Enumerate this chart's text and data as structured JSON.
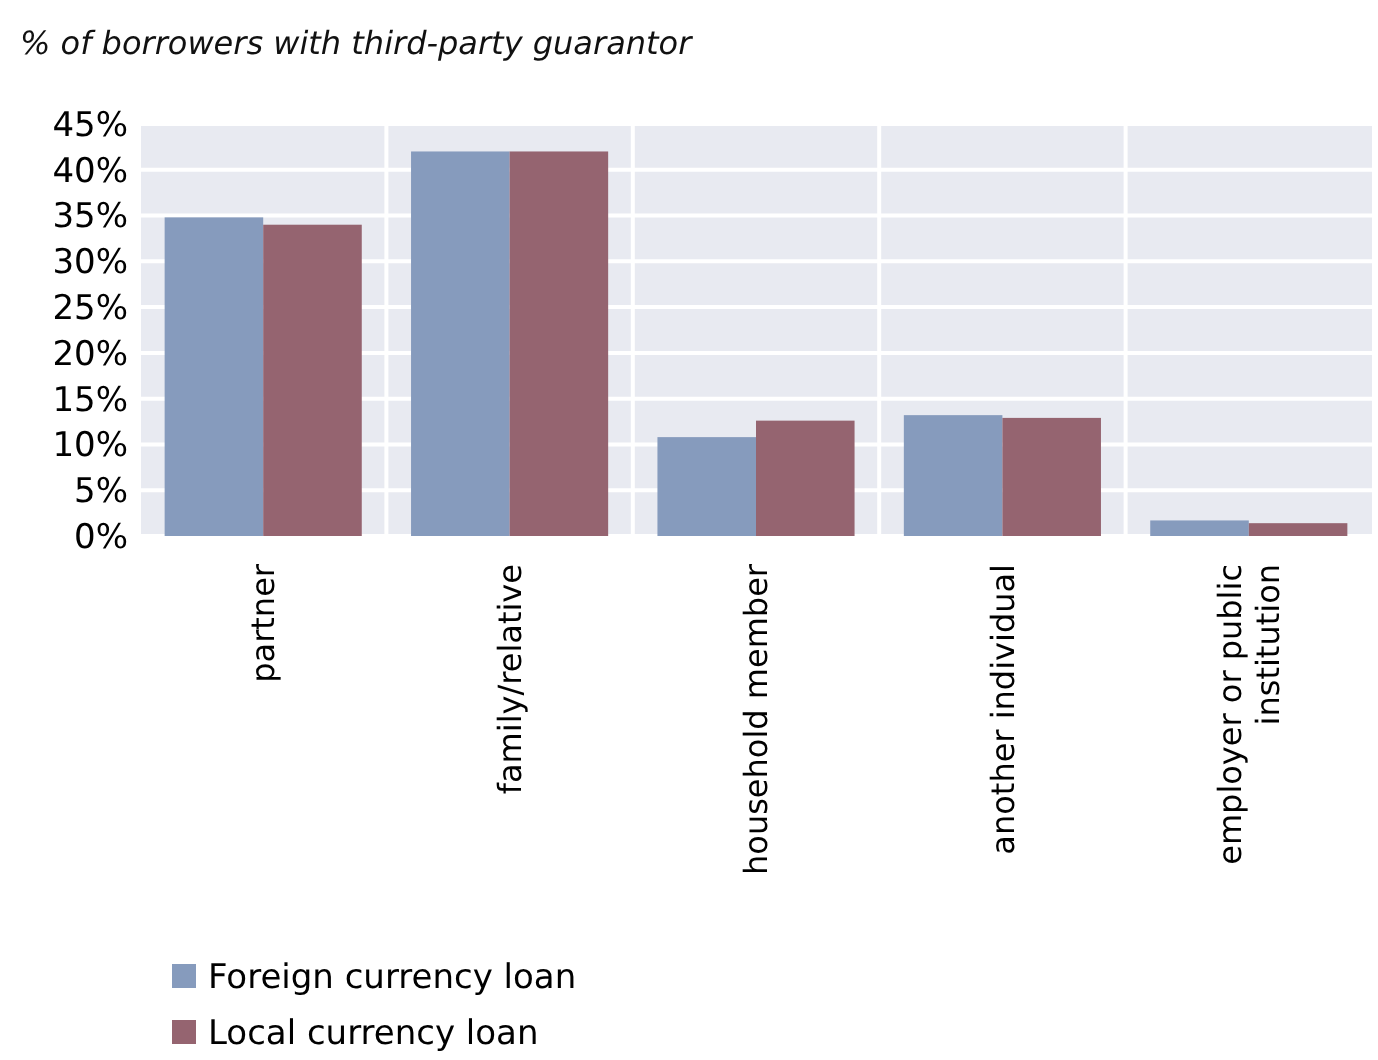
{
  "chart_data": {
    "type": "bar",
    "subtitle": "% of borrowers with third-party guarantor",
    "categories": [
      "partner",
      "family/relative",
      "household member",
      "another individual",
      "employer or public institution"
    ],
    "series": [
      {
        "name": "Foreign currency loan",
        "color": "#869bbd",
        "values": [
          34.8,
          42,
          10.8,
          13.2,
          1.7
        ]
      },
      {
        "name": "Local currency loan",
        "color": "#956470",
        "values": [
          34,
          42,
          12.6,
          12.9,
          1.4
        ]
      }
    ],
    "ylim": [
      0,
      45
    ],
    "yticks": [
      {
        "value": 0,
        "label": "0%"
      },
      {
        "value": 5,
        "label": "5%"
      },
      {
        "value": 10,
        "label": "10%"
      },
      {
        "value": 15,
        "label": "15%"
      },
      {
        "value": 20,
        "label": "20%"
      },
      {
        "value": 25,
        "label": "25%"
      },
      {
        "value": 30,
        "label": "30%"
      },
      {
        "value": 35,
        "label": "35%"
      },
      {
        "value": 40,
        "label": "40%"
      },
      {
        "value": 45,
        "label": "45%"
      }
    ],
    "grid": true,
    "legend": "bottom left"
  }
}
